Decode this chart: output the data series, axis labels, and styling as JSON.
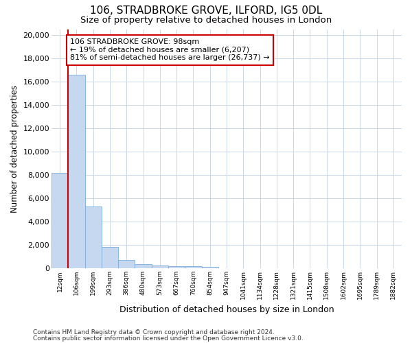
{
  "title": "106, STRADBROKE GROVE, ILFORD, IG5 0DL",
  "subtitle": "Size of property relative to detached houses in London",
  "xlabel": "Distribution of detached houses by size in London",
  "ylabel": "Number of detached properties",
  "footer_line1": "Contains HM Land Registry data © Crown copyright and database right 2024.",
  "footer_line2": "Contains public sector information licensed under the Open Government Licence v3.0.",
  "bin_labels": [
    "12sqm",
    "106sqm",
    "199sqm",
    "293sqm",
    "386sqm",
    "480sqm",
    "573sqm",
    "667sqm",
    "760sqm",
    "854sqm",
    "947sqm",
    "1041sqm",
    "1134sqm",
    "1228sqm",
    "1321sqm",
    "1415sqm",
    "1508sqm",
    "1602sqm",
    "1695sqm",
    "1789sqm",
    "1882sqm"
  ],
  "bar_values": [
    8200,
    16600,
    5300,
    1850,
    750,
    350,
    280,
    200,
    180,
    120,
    0,
    0,
    0,
    0,
    0,
    0,
    0,
    0,
    0,
    0,
    0
  ],
  "bar_color": "#c5d8ef",
  "bar_edge_color": "#7aacdb",
  "highlight_color": "#cc0000",
  "annotation_title": "106 STRADBROKE GROVE: 98sqm",
  "annotation_line1": "← 19% of detached houses are smaller (6,207)",
  "annotation_line2": "81% of semi-detached houses are larger (26,737) →",
  "annotation_box_facecolor": "#ffffff",
  "annotation_box_edgecolor": "#cc0000",
  "ylim": [
    0,
    20500
  ],
  "yticks": [
    0,
    2000,
    4000,
    6000,
    8000,
    10000,
    12000,
    14000,
    16000,
    18000,
    20000
  ],
  "grid_color": "#c8d8e8",
  "fig_bg": "#ffffff",
  "ax_bg": "#ffffff",
  "title_fontsize": 11,
  "subtitle_fontsize": 9.5
}
